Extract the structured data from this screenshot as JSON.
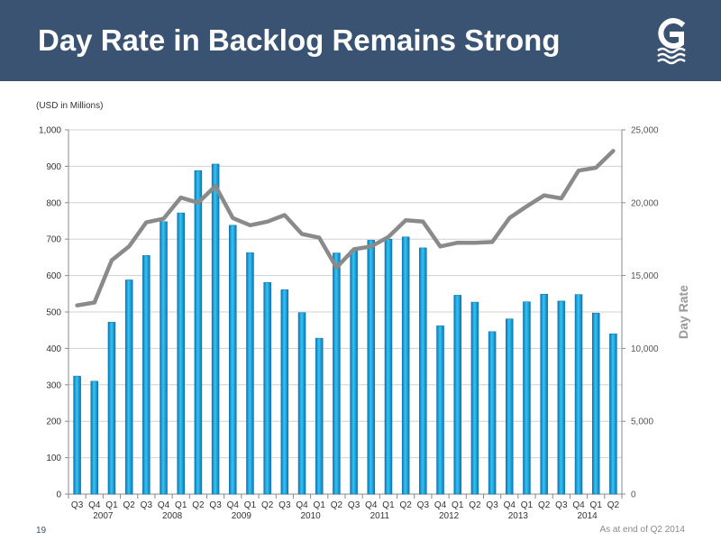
{
  "header": {
    "title": "Day Rate in Backlog Remains Strong",
    "logo_icon": "company-g-wave-logo",
    "background_color": "#3a5373"
  },
  "footer": {
    "page_number": "19",
    "note": "As at end of Q2 2014"
  },
  "chart_data": {
    "type": "bar",
    "title": "",
    "units_label": "(USD in Millions)",
    "xlabel": "",
    "ylabel": "",
    "y2label": "Day Rate",
    "categories": [
      "Q3",
      "Q4",
      "Q1",
      "Q2",
      "Q3",
      "Q4",
      "Q1",
      "Q2",
      "Q3",
      "Q4",
      "Q1",
      "Q2",
      "Q3",
      "Q4",
      "Q1",
      "Q2",
      "Q3",
      "Q4",
      "Q1",
      "Q2",
      "Q3",
      "Q4",
      "Q1",
      "Q2",
      "Q3",
      "Q4",
      "Q1",
      "Q2",
      "Q3",
      "Q4",
      "Q1",
      "Q2"
    ],
    "year_groups": [
      {
        "label": "2007",
        "start": 0,
        "end": 3
      },
      {
        "label": "2008",
        "start": 4,
        "end": 7
      },
      {
        "label": "2009",
        "start": 8,
        "end": 11
      },
      {
        "label": "2010",
        "start": 12,
        "end": 15
      },
      {
        "label": "2011",
        "start": 16,
        "end": 19
      },
      {
        "label": "2012",
        "start": 20,
        "end": 23
      },
      {
        "label": "2013",
        "start": 24,
        "end": 27
      },
      {
        "label": "2014",
        "start": 28,
        "end": 31
      }
    ],
    "ylim": [
      0,
      1000
    ],
    "y_ticks": [
      0,
      100,
      200,
      300,
      400,
      500,
      600,
      700,
      800,
      900,
      1000
    ],
    "y_tick_labels": [
      "0",
      "100",
      "200",
      "300",
      "400",
      "500",
      "600",
      "700",
      "800",
      "900",
      "1,000"
    ],
    "y2lim": [
      0,
      25000
    ],
    "y2_ticks": [
      0,
      5000,
      10000,
      15000,
      20000,
      25000
    ],
    "y2_tick_labels": [
      "0",
      "5,000",
      "10,000",
      "15,000",
      "20,000",
      "25,000"
    ],
    "grid": true,
    "series": [
      {
        "type": "bar",
        "axis": "left",
        "color": "#1aa7e0",
        "values": [
          324,
          310,
          472,
          588,
          655,
          748,
          772,
          888,
          906,
          738,
          663,
          581,
          561,
          498,
          428,
          662,
          670,
          697,
          700,
          706,
          676,
          462,
          546,
          527,
          446,
          481,
          528,
          549,
          530,
          548,
          497,
          440
        ]
      },
      {
        "type": "line",
        "axis": "right",
        "color": "#8a8a8a",
        "values": [
          12950,
          13150,
          16050,
          17000,
          18650,
          18900,
          20350,
          20000,
          21150,
          18950,
          18450,
          18700,
          19150,
          17850,
          17600,
          15550,
          16800,
          17000,
          17650,
          18800,
          18700,
          17000,
          17250,
          17250,
          17300,
          18950,
          19750,
          20500,
          20300,
          22200,
          22400,
          23550
        ]
      }
    ]
  }
}
